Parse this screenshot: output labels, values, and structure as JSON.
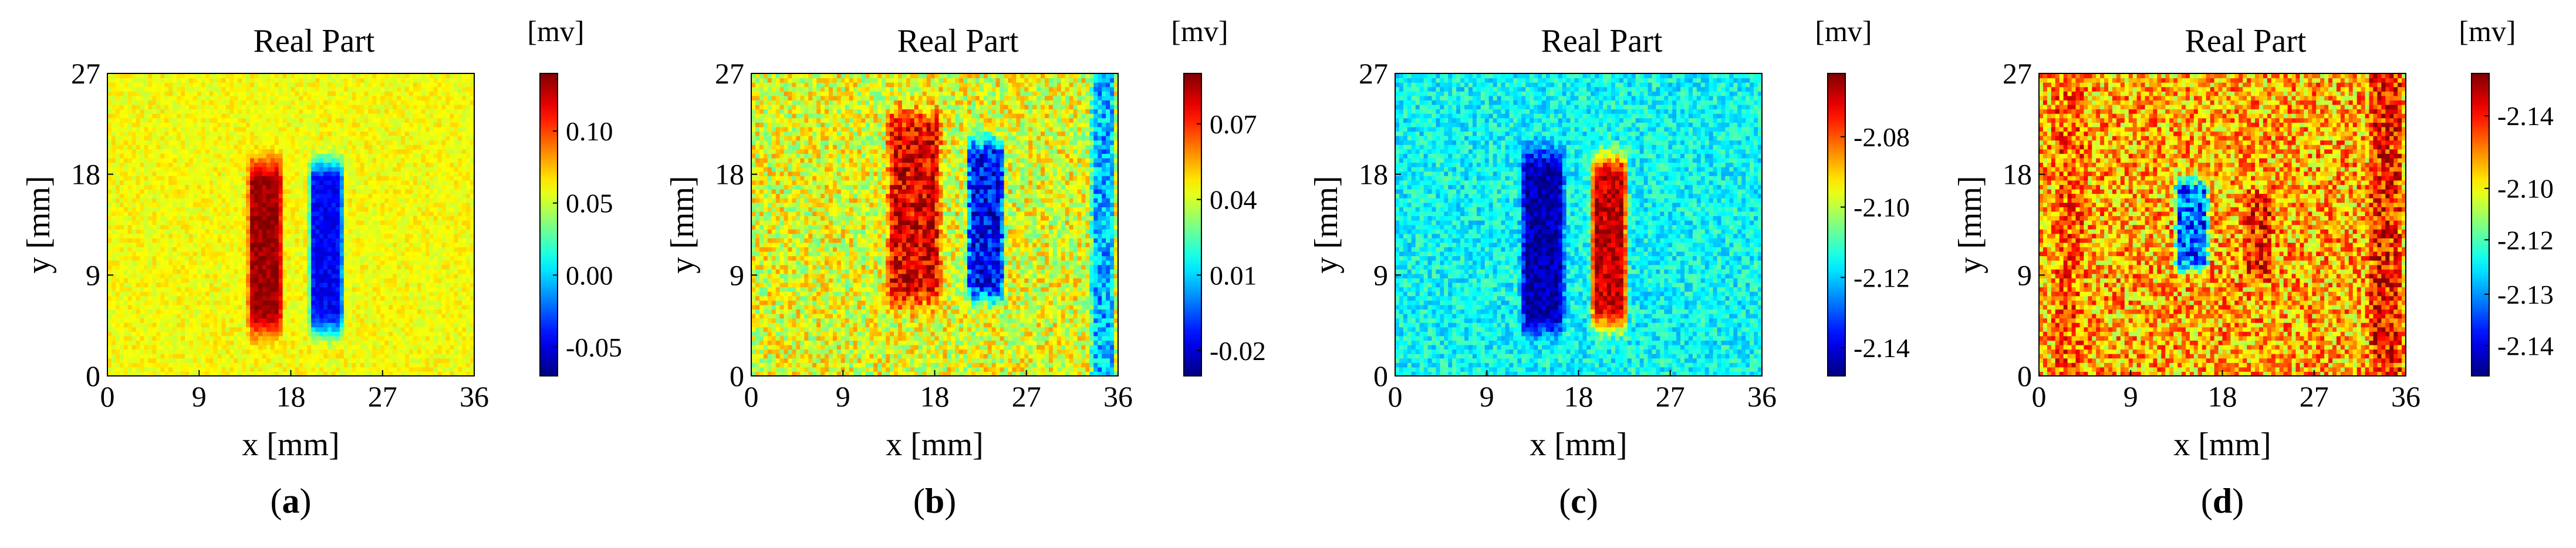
{
  "figure": {
    "colorbar_unit": "[mv]",
    "colors": {
      "jet_low": "#00008f",
      "jet_mid": "#80ff80",
      "jet_high": "#800000"
    }
  },
  "chart_data": [
    {
      "type": "heatmap",
      "panel": "a",
      "caption_open": "(",
      "caption_letter": "a",
      "caption_close": ")",
      "title": "Real Part",
      "xlabel": "x [mm]",
      "ylabel": "y [mm]",
      "xlim": [
        0,
        36
      ],
      "ylim": [
        0,
        27
      ],
      "xticks": [
        "0",
        "9",
        "18",
        "27",
        "36"
      ],
      "yticks": [
        "0",
        "9",
        "18",
        "27"
      ],
      "colorbar": {
        "unit": "[mv]",
        "ticks": [
          "0.10",
          "0.05",
          "0.00",
          "-0.05"
        ],
        "tick_values": [
          0.1,
          0.05,
          0.0,
          -0.05
        ],
        "range": [
          -0.07,
          0.14
        ]
      },
      "background_level": 0.62,
      "noise": 0.05,
      "features": [
        {
          "x": 15.5,
          "y": 11.5,
          "width": 3.2,
          "height": 15,
          "level": 0.97
        },
        {
          "x": 21.5,
          "y": 11.5,
          "width": 3.2,
          "height": 15,
          "level": 0.12
        }
      ],
      "column_bands": [],
      "bg_trend": 0.0
    },
    {
      "type": "heatmap",
      "panel": "b",
      "caption_open": "(",
      "caption_letter": "b",
      "caption_close": ")",
      "title": "Real Part",
      "xlabel": "x [mm]",
      "ylabel": "y [mm]",
      "xlim": [
        0,
        36
      ],
      "ylim": [
        0,
        27
      ],
      "xticks": [
        "0",
        "9",
        "18",
        "27",
        "36"
      ],
      "yticks": [
        "0",
        "9",
        "18",
        "27"
      ],
      "colorbar": {
        "unit": "[mv]",
        "ticks": [
          "0.07",
          "0.04",
          "0.01",
          "-0.02"
        ],
        "tick_values": [
          0.07,
          0.04,
          0.01,
          -0.02
        ],
        "range": [
          -0.03,
          0.09
        ]
      },
      "background_level": 0.6,
      "noise": 0.13,
      "features": [
        {
          "x": 16,
          "y": 15,
          "width": 5,
          "height": 17,
          "level": 0.9
        },
        {
          "x": 23,
          "y": 14,
          "width": 3.5,
          "height": 14,
          "level": 0.12
        }
      ],
      "column_bands": [
        {
          "x": 34.5,
          "width": 2.2,
          "level": 0.3
        }
      ],
      "bg_trend": 0.0
    },
    {
      "type": "heatmap",
      "panel": "c",
      "caption_open": "(",
      "caption_letter": "c",
      "caption_close": ")",
      "title": "Real Part",
      "xlabel": "x [mm]",
      "ylabel": "y [mm]",
      "xlim": [
        0,
        36
      ],
      "ylim": [
        0,
        27
      ],
      "xticks": [
        "0",
        "9",
        "18",
        "27",
        "36"
      ],
      "yticks": [
        "0",
        "9",
        "18",
        "27"
      ],
      "colorbar": {
        "unit": "[mv]",
        "ticks": [
          "-2.08",
          "-2.10",
          "-2.12",
          "-2.14"
        ],
        "tick_values": [
          -2.08,
          -2.1,
          -2.12,
          -2.14
        ],
        "range": [
          -2.148,
          -2.062
        ]
      },
      "background_level": 0.38,
      "noise": 0.09,
      "features": [
        {
          "x": 14.5,
          "y": 12,
          "width": 4,
          "height": 16,
          "level": 0.04
        },
        {
          "x": 21,
          "y": 12,
          "width": 3.4,
          "height": 15,
          "level": 0.93
        }
      ],
      "column_bands": [],
      "bg_trend": 0.0
    },
    {
      "type": "heatmap",
      "panel": "d",
      "caption_open": "(",
      "caption_letter": "d",
      "caption_close": ")",
      "title": "Real Part",
      "xlabel": "x [mm]",
      "ylabel": "y [mm]",
      "xlim": [
        0,
        36
      ],
      "ylim": [
        0,
        27
      ],
      "xticks": [
        "0",
        "9",
        "18",
        "27",
        "36"
      ],
      "yticks": [
        "0",
        "9",
        "18",
        "27"
      ],
      "colorbar": {
        "unit": "[mv]",
        "ticks": [
          "-2.14",
          "-2.10",
          "-2.12",
          "-2.13",
          "-2.14"
        ],
        "tick_values": [
          0.86,
          0.62,
          0.45,
          0.27,
          0.1
        ],
        "range": [
          0,
          1
        ]
      },
      "background_level": 0.7,
      "noise": 0.17,
      "features": [
        {
          "x": 15,
          "y": 13.5,
          "width": 3.2,
          "height": 8,
          "level": 0.22
        },
        {
          "x": 21.5,
          "y": 12.5,
          "width": 2.8,
          "height": 8,
          "level": 0.85
        }
      ],
      "column_bands": [
        {
          "x": 3,
          "width": 3,
          "level": 0.78
        },
        {
          "x": 34,
          "width": 3,
          "level": 0.85
        }
      ],
      "bg_trend": 0.0
    }
  ]
}
